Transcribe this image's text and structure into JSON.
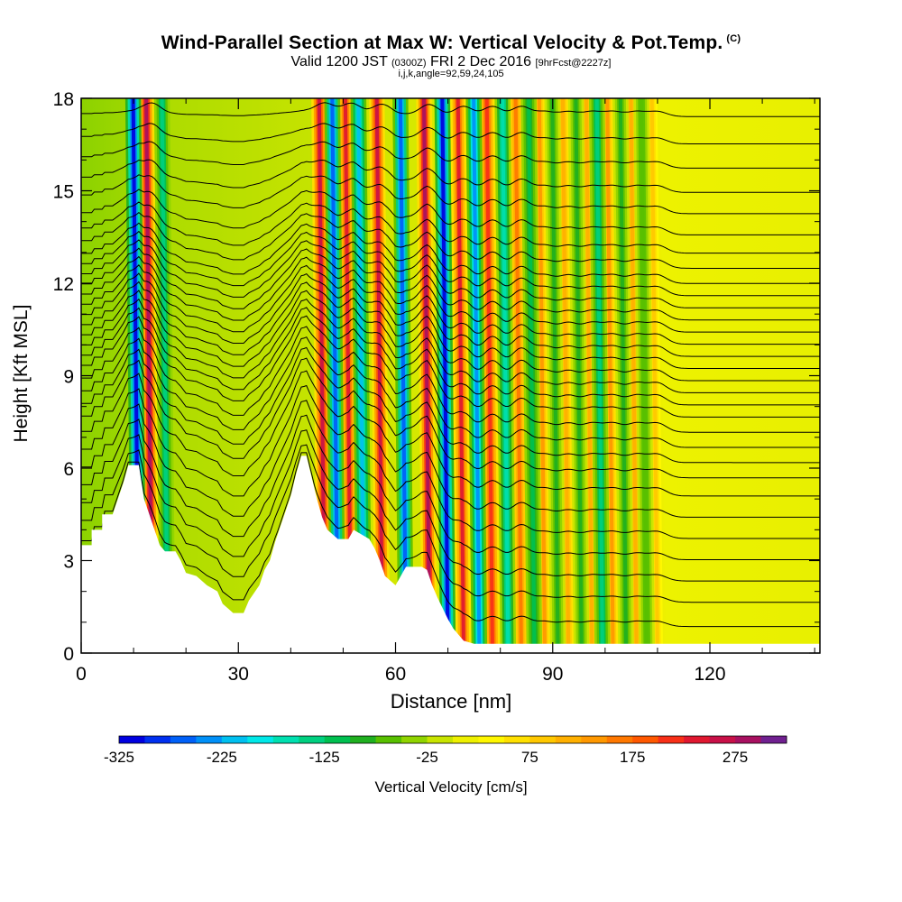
{
  "title": "Wind-Parallel Section at Max W: Vertical Velocity & Pot.Temp.",
  "copyright": "(C)",
  "subtitle": {
    "main": "Valid 1200 JST",
    "utc": "(0300Z)",
    "date": "FRI 2 Dec 2016",
    "run": "[9hrFcst@2227z]"
  },
  "indices": "i,j,k,angle=92,59,24,105",
  "chart_data": {
    "type": "heatmap",
    "description_fields": "vertical velocity (shaded) with potential temperature contours",
    "xlabel": "Distance [nm]",
    "ylabel": "Height [Kft MSL]",
    "xlim": [
      0,
      141
    ],
    "ylim": [
      0,
      18
    ],
    "x_ticks": [
      0,
      30,
      60,
      90,
      120
    ],
    "y_ticks": [
      0,
      3,
      6,
      9,
      12,
      15,
      18
    ],
    "x_tick_labels": [
      "0",
      "30",
      "60",
      "90",
      "120"
    ],
    "y_tick_labels": [
      "0",
      "3",
      "6",
      "9",
      "12",
      "15",
      "18"
    ],
    "terrain_height": [
      [
        0,
        3.5
      ],
      [
        2,
        3.5
      ],
      [
        2,
        4.0
      ],
      [
        4,
        4.0
      ],
      [
        4,
        4.5
      ],
      [
        6,
        4.5
      ],
      [
        7,
        5.0
      ],
      [
        8,
        5.5
      ],
      [
        9,
        6.1
      ],
      [
        11,
        6.1
      ],
      [
        12,
        5.0
      ],
      [
        13,
        4.5
      ],
      [
        14,
        4.0
      ],
      [
        15,
        3.5
      ],
      [
        16,
        3.3
      ],
      [
        18,
        3.3
      ],
      [
        19,
        3.0
      ],
      [
        20,
        2.6
      ],
      [
        22,
        2.5
      ],
      [
        24,
        2.2
      ],
      [
        26,
        2.0
      ],
      [
        27,
        1.6
      ],
      [
        29,
        1.3
      ],
      [
        31,
        1.3
      ],
      [
        32,
        1.7
      ],
      [
        34,
        2.2
      ],
      [
        35,
        2.7
      ],
      [
        36,
        3.0
      ],
      [
        37,
        3.6
      ],
      [
        38,
        4.1
      ],
      [
        39,
        4.6
      ],
      [
        40,
        5.1
      ],
      [
        41,
        5.8
      ],
      [
        42,
        6.4
      ],
      [
        43,
        6.4
      ],
      [
        44,
        5.7
      ],
      [
        45,
        5.0
      ],
      [
        46,
        4.4
      ],
      [
        47,
        4.0
      ],
      [
        49,
        3.7
      ],
      [
        51,
        3.7
      ],
      [
        52,
        4.0
      ],
      [
        55,
        3.7
      ],
      [
        56,
        3.4
      ],
      [
        57,
        3.0
      ],
      [
        58,
        2.5
      ],
      [
        60,
        2.2
      ],
      [
        61,
        2.5
      ],
      [
        62,
        2.8
      ],
      [
        63,
        2.8
      ],
      [
        64,
        2.8
      ],
      [
        65,
        2.8
      ],
      [
        66,
        2.7
      ],
      [
        67,
        2.2
      ],
      [
        68,
        1.8
      ],
      [
        70,
        1.1
      ],
      [
        71,
        0.8
      ],
      [
        72,
        0.6
      ],
      [
        73,
        0.4
      ],
      [
        75,
        0.3
      ],
      [
        141,
        0.3
      ]
    ],
    "updraft_bands": [
      {
        "x": 13.5,
        "peak_cm_s": 275,
        "top_kft": 18
      },
      {
        "x": 46.5,
        "peak_cm_s": 250,
        "top_kft": 18
      },
      {
        "x": 51.5,
        "peak_cm_s": 225,
        "top_kft": 18
      },
      {
        "x": 57.5,
        "peak_cm_s": 250,
        "top_kft": 18
      },
      {
        "x": 66.5,
        "peak_cm_s": 275,
        "top_kft": 18
      },
      {
        "x": 73,
        "peak_cm_s": 225,
        "top_kft": 18
      },
      {
        "x": 78.5,
        "peak_cm_s": 200,
        "top_kft": 18
      },
      {
        "x": 84,
        "peak_cm_s": 150,
        "top_kft": 18
      },
      {
        "x": 88.5,
        "peak_cm_s": 125,
        "top_kft": 18
      },
      {
        "x": 93,
        "peak_cm_s": 100,
        "top_kft": 18
      },
      {
        "x": 97.5,
        "peak_cm_s": 100,
        "top_kft": 18
      },
      {
        "x": 101.5,
        "peak_cm_s": 125,
        "top_kft": 18
      },
      {
        "x": 106,
        "peak_cm_s": 100,
        "top_kft": 18
      },
      {
        "x": 110,
        "peak_cm_s": 75,
        "top_kft": 18
      }
    ],
    "downdraft_bands": [
      {
        "x": 11,
        "peak_cm_s": -325,
        "top_kft": 18
      },
      {
        "x": 16.5,
        "peak_cm_s": -150,
        "top_kft": 18
      },
      {
        "x": 49,
        "peak_cm_s": -275,
        "top_kft": 18
      },
      {
        "x": 54,
        "peak_cm_s": -225,
        "top_kft": 18
      },
      {
        "x": 62,
        "peak_cm_s": -275,
        "top_kft": 18
      },
      {
        "x": 70,
        "peak_cm_s": -325,
        "top_kft": 18
      },
      {
        "x": 76,
        "peak_cm_s": -250,
        "top_kft": 18
      },
      {
        "x": 81.5,
        "peak_cm_s": -175,
        "top_kft": 18
      },
      {
        "x": 86.5,
        "peak_cm_s": -125,
        "top_kft": 18
      },
      {
        "x": 91,
        "peak_cm_s": -100,
        "top_kft": 18
      },
      {
        "x": 95.5,
        "peak_cm_s": -100,
        "top_kft": 18
      },
      {
        "x": 99.5,
        "peak_cm_s": -150,
        "top_kft": 18
      },
      {
        "x": 104,
        "peak_cm_s": -100,
        "top_kft": 18
      },
      {
        "x": 108,
        "peak_cm_s": -75,
        "top_kft": 18
      }
    ],
    "theta_contour_base_kft": [
      0.6,
      1.4,
      2.1,
      2.8,
      3.5,
      4.2,
      4.9,
      5.5,
      6.0,
      6.5,
      7.0,
      7.5,
      7.9,
      8.3,
      8.7,
      9.1,
      9.5,
      9.9,
      10.3,
      10.7,
      11.1,
      11.5,
      11.9,
      12.4,
      12.9,
      13.5,
      14.2,
      14.9,
      15.7,
      16.5,
      17.4
    ],
    "colorbar": {
      "label": "Vertical Velocity [cm/s]",
      "min": -325,
      "max": 325,
      "step": 25,
      "tick_values": [
        -325,
        -225,
        -125,
        -25,
        75,
        175,
        275
      ],
      "tick_labels": [
        "-325",
        "-225",
        "-125",
        "-25",
        "75",
        "175",
        "275"
      ],
      "colors": [
        "#0000e0",
        "#0030f0",
        "#0060f8",
        "#0090f8",
        "#00c0f0",
        "#00e8e8",
        "#00e0b0",
        "#00d080",
        "#00c050",
        "#20b020",
        "#58c000",
        "#90d400",
        "#c8e400",
        "#eef000",
        "#fff700",
        "#ffe000",
        "#ffc800",
        "#ffb000",
        "#ff9800",
        "#ff7800",
        "#ff5800",
        "#f83018",
        "#e01830",
        "#c81048",
        "#a81060",
        "#702090"
      ]
    }
  }
}
